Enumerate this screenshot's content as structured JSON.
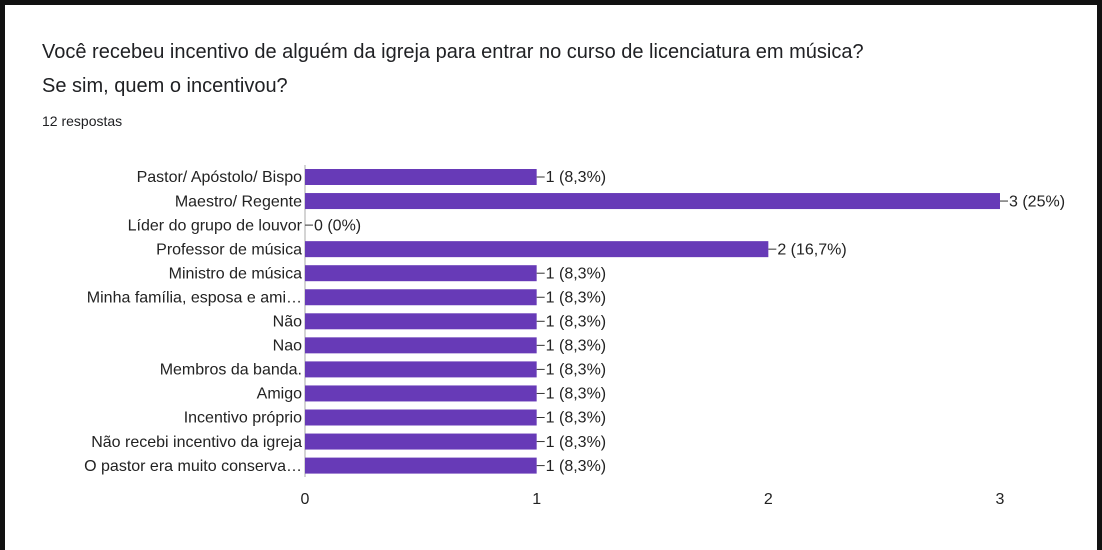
{
  "chart_data": {
    "type": "barh",
    "title": "Você recebeu incentivo de alguém da igreja para entrar no curso de licenciatura em música?\nSe sim, quem o incentivou?",
    "subtitle": "12 respostas",
    "categories": [
      "Pastor/ Apóstolo/ Bispo",
      "Maestro/ Regente",
      "Líder do grupo de louvor",
      "Professor de música",
      "Ministro de música",
      "Minha família, esposa e ami…",
      "Não",
      "Nao",
      "Membros da banda.",
      "Amigo",
      "Incentivo próprio",
      "Não recebi incentivo da igreja",
      "O pastor era muito conserva…"
    ],
    "values": [
      1,
      3,
      0,
      2,
      1,
      1,
      1,
      1,
      1,
      1,
      1,
      1,
      1
    ],
    "value_labels": [
      "1 (8,3%)",
      "3 (25%)",
      "0 (0%)",
      "2 (16,7%)",
      "1 (8,3%)",
      "1 (8,3%)",
      "1 (8,3%)",
      "1 (8,3%)",
      "1 (8,3%)",
      "1 (8,3%)",
      "1 (8,3%)",
      "1 (8,3%)",
      "1 (8,3%)"
    ],
    "color": "#673ab7",
    "xlim": [
      0,
      3
    ],
    "xticks": [
      0,
      1,
      2,
      3
    ],
    "grid": false
  }
}
